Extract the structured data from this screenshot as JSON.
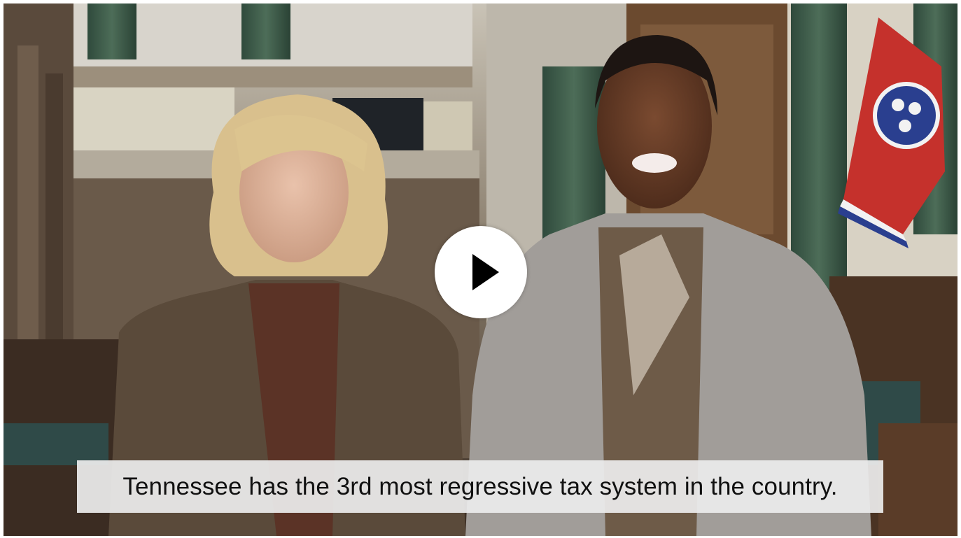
{
  "video": {
    "caption": "Tennessee has the 3rd most regressive tax system in the country."
  }
}
